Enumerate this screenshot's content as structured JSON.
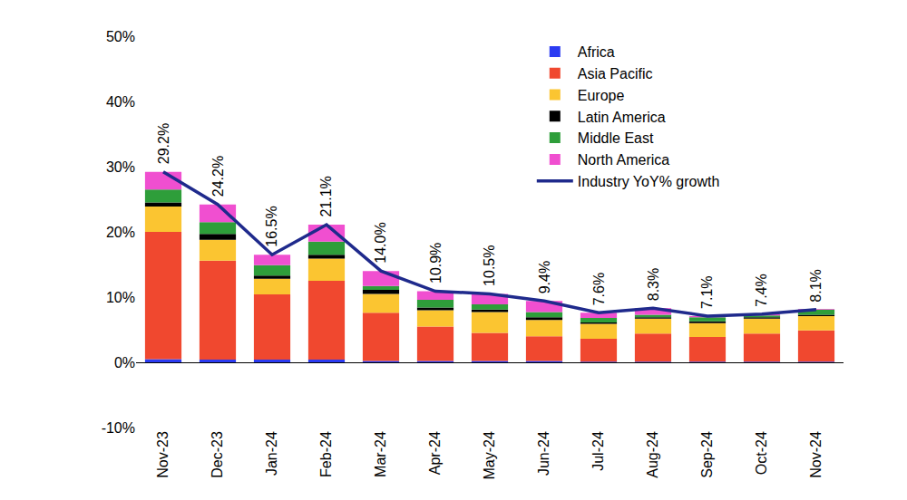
{
  "chart_data": {
    "type": "bar",
    "stacked": true,
    "categories": [
      "Nov-23",
      "Dec-23",
      "Jan-24",
      "Feb-24",
      "Mar-24",
      "Apr-24",
      "May-24",
      "Jun-24",
      "Jul-24",
      "Aug-24",
      "Sep-24",
      "Oct-24",
      "Nov-24"
    ],
    "series": [
      {
        "name": "Africa",
        "color": "#2b3bf2",
        "values": [
          0.5,
          0.4,
          0.4,
          0.4,
          0.2,
          0.2,
          0.2,
          0.2,
          0.1,
          0.1,
          0.1,
          0.1,
          0.1
        ]
      },
      {
        "name": "Asia Pacific",
        "color": "#f0482f",
        "values": [
          19.5,
          15.2,
          10.0,
          12.1,
          7.4,
          5.3,
          4.3,
          3.8,
          3.5,
          4.3,
          3.8,
          4.3,
          4.8
        ]
      },
      {
        "name": "Europe",
        "color": "#fbc531",
        "values": [
          3.9,
          3.2,
          2.4,
          3.4,
          2.9,
          2.5,
          3.2,
          2.5,
          2.3,
          2.3,
          2.1,
          2.3,
          2.2
        ]
      },
      {
        "name": "Latin America",
        "color": "#000000",
        "values": [
          0.6,
          0.9,
          0.5,
          0.6,
          0.6,
          0.4,
          0.4,
          0.4,
          0.2,
          0.2,
          0.3,
          0.2,
          0.2
        ]
      },
      {
        "name": "Middle East",
        "color": "#2e9e3a",
        "values": [
          2.0,
          1.8,
          1.6,
          2.0,
          0.6,
          1.2,
          0.8,
          0.8,
          0.7,
          0.4,
          0.6,
          0.3,
          0.8
        ]
      },
      {
        "name": "North America",
        "color": "#f04fd0",
        "values": [
          2.7,
          2.7,
          1.6,
          2.6,
          2.3,
          1.3,
          1.6,
          1.7,
          0.8,
          1.0,
          0.2,
          0.2,
          0.1
        ]
      },
      {
        "name": "Industry YoY% growth",
        "type": "line",
        "color": "#1f2a8c",
        "line_style": "solid",
        "data_labels": true,
        "values": [
          29.2,
          24.2,
          16.5,
          21.1,
          14.0,
          10.9,
          10.5,
          9.4,
          7.6,
          8.3,
          7.1,
          7.4,
          8.1
        ],
        "value_labels": [
          "29.2%",
          "24.2%",
          "16.5%",
          "21.1%",
          "14.0%",
          "10.9%",
          "10.5%",
          "9.4%",
          "7.6%",
          "8.3%",
          "7.1%",
          "7.4%",
          "8.1%"
        ]
      }
    ],
    "ylim": [
      -10,
      50
    ],
    "yticks": [
      {
        "value": -10,
        "label": "-10%"
      },
      {
        "value": 0,
        "label": "0%"
      },
      {
        "value": 10,
        "label": "10%"
      },
      {
        "value": 20,
        "label": "20%"
      },
      {
        "value": 30,
        "label": "30%"
      },
      {
        "value": 40,
        "label": "40%"
      },
      {
        "value": 50,
        "label": "50%"
      }
    ],
    "grid": false,
    "legend": "top right"
  }
}
